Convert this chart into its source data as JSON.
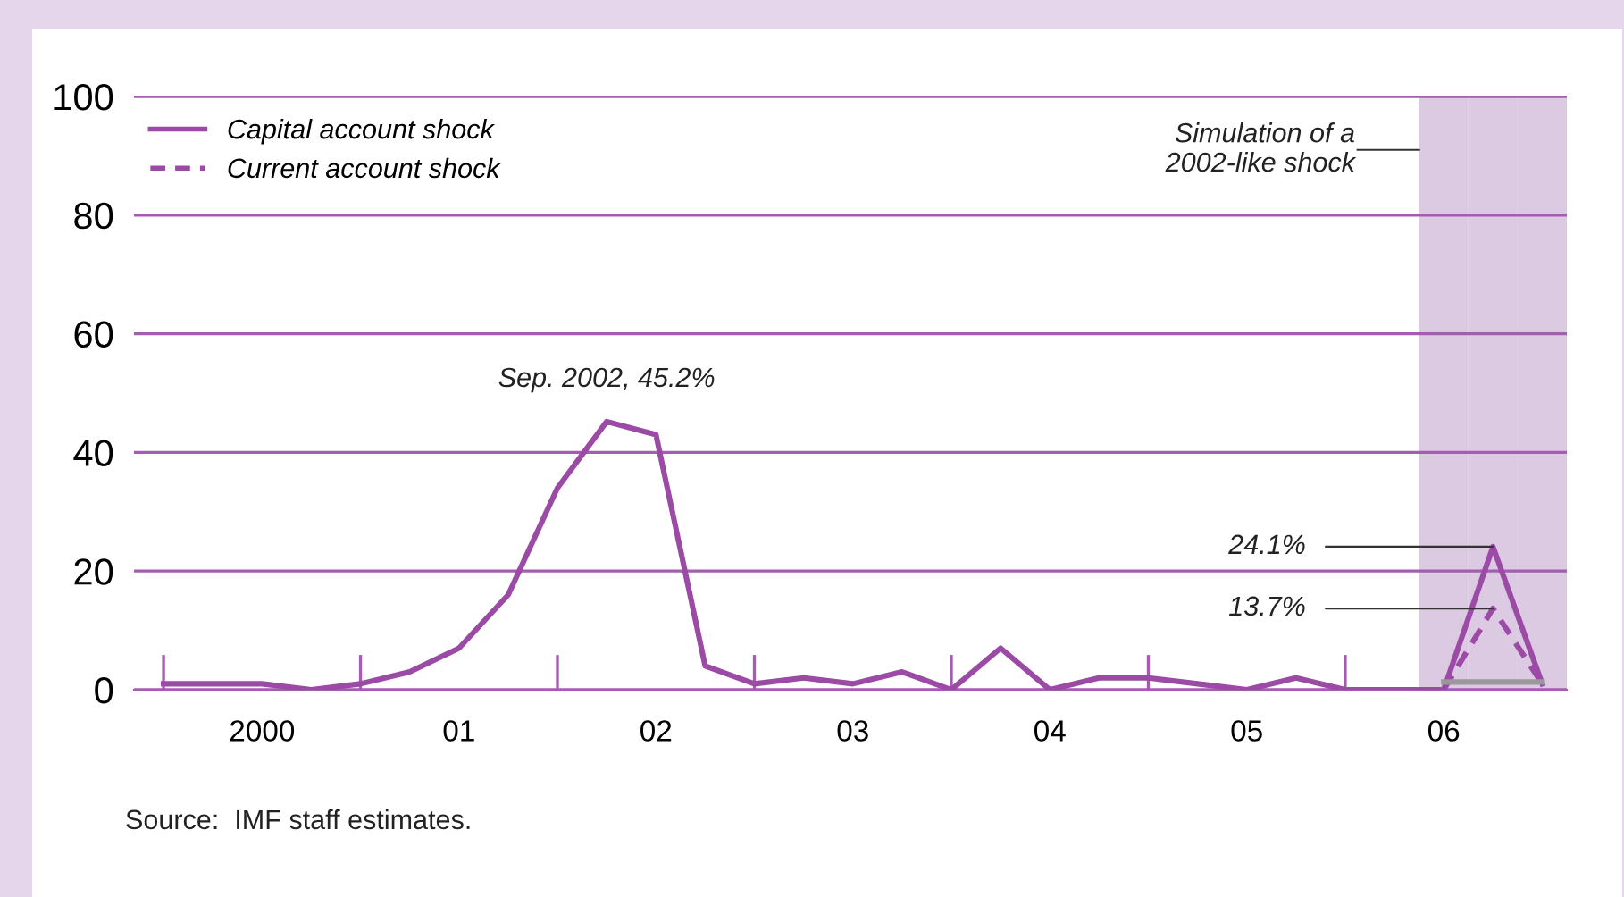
{
  "chart_data": {
    "type": "line",
    "categories": [
      null,
      null,
      "2000",
      null,
      null,
      null,
      "01",
      null,
      null,
      null,
      "02",
      null,
      null,
      null,
      "03",
      null,
      null,
      null,
      "04",
      null,
      null,
      null,
      "05",
      null,
      null,
      null,
      "06",
      null,
      null
    ],
    "series": [
      {
        "type": "bar",
        "color": "#dcc9e2",
        "values": [
          null,
          null,
          null,
          null,
          null,
          null,
          null,
          null,
          null,
          null,
          null,
          null,
          null,
          null,
          null,
          null,
          null,
          null,
          null,
          null,
          null,
          null,
          null,
          null,
          null,
          null,
          100,
          100,
          100
        ]
      },
      {
        "name": "Capital account shock",
        "color": "#9b4aa6",
        "line_style": "solid",
        "values": [
          1,
          1,
          1,
          0,
          1,
          3,
          7,
          16,
          34,
          45.2,
          43,
          4,
          1,
          2,
          1,
          3,
          0,
          7,
          0,
          2,
          2,
          1,
          0,
          2,
          0,
          0,
          0,
          24.1,
          1
        ],
        "value_labels": [
          null,
          null,
          null,
          null,
          null,
          null,
          null,
          null,
          null,
          "Sep. 2002, 45.2%",
          null,
          null,
          null,
          null,
          null,
          null,
          null,
          null,
          null,
          null,
          null,
          null,
          null,
          null,
          null,
          null,
          null,
          "24.1%",
          null
        ]
      },
      {
        "name": "Current account shock",
        "color": "#9b4aa6",
        "line_style": "dashed",
        "values": [
          null,
          null,
          null,
          null,
          null,
          null,
          null,
          null,
          null,
          null,
          null,
          null,
          null,
          null,
          null,
          null,
          null,
          null,
          null,
          null,
          null,
          null,
          null,
          null,
          null,
          null,
          0,
          13.7,
          1
        ],
        "value_labels": [
          null,
          null,
          null,
          null,
          null,
          null,
          null,
          null,
          null,
          null,
          null,
          null,
          null,
          null,
          null,
          null,
          null,
          null,
          null,
          null,
          null,
          null,
          null,
          null,
          null,
          null,
          null,
          "13.7%",
          null
        ]
      },
      {
        "color": "#999999",
        "line_style": "solid",
        "values": [
          null,
          null,
          null,
          null,
          null,
          null,
          null,
          null,
          null,
          null,
          null,
          null,
          null,
          null,
          null,
          null,
          null,
          null,
          null,
          null,
          null,
          null,
          null,
          null,
          null,
          null,
          1.3,
          1.3,
          1.3
        ]
      }
    ],
    "ylim": [
      0,
      100
    ],
    "yticks": [
      0,
      20,
      40,
      60,
      80,
      100
    ],
    "grid": "y",
    "legend": "top left",
    "marker": "none",
    "annotations": [
      "Simulation of a\n2002-like shock",
      "Source:  IMF staff estimates."
    ]
  }
}
